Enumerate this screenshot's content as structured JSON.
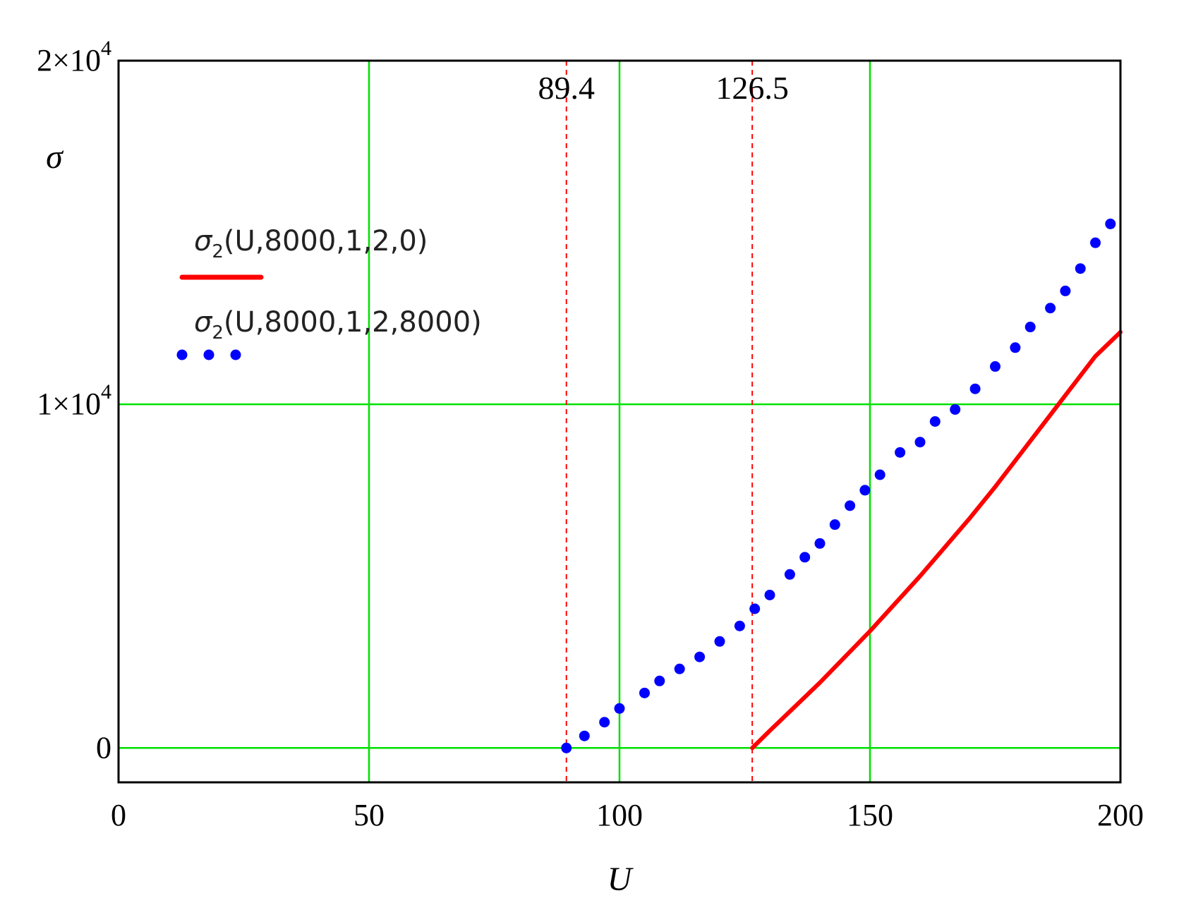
{
  "chart_data": {
    "type": "line",
    "xlabel": "U",
    "ylabel": "σ",
    "xlim": [
      0,
      200
    ],
    "ylim": [
      -1000,
      20000
    ],
    "x_ticks": [
      {
        "value": 0,
        "label": "0"
      },
      {
        "value": 50,
        "label": "50"
      },
      {
        "value": 100,
        "label": "100"
      },
      {
        "value": 150,
        "label": "150"
      },
      {
        "value": 200,
        "label": "200"
      }
    ],
    "y_ticks": [
      {
        "value": 0,
        "label": "0"
      },
      {
        "value": 10000,
        "label": "1×10",
        "exp": "4"
      },
      {
        "value": 20000,
        "label": "2×10",
        "exp": "4"
      }
    ],
    "grid": true,
    "markers": [
      {
        "x": 89.4,
        "label": "89.4"
      },
      {
        "x": 126.5,
        "label": "126.5"
      }
    ],
    "legend_position": "upper-left",
    "series": [
      {
        "name": "σ2(U,8000,1,2,0)",
        "legend_main": "σ",
        "legend_sub": "2",
        "legend_rest": "(U,8000,1,2,0)",
        "style": "solid",
        "color": "#ff0000",
        "x": [
          126.5,
          130,
          135,
          140,
          145,
          150,
          155,
          160,
          165,
          170,
          175,
          180,
          185,
          190,
          195,
          200
        ],
        "values": [
          0,
          500,
          1200,
          1900,
          2650,
          3400,
          4200,
          5000,
          5850,
          6700,
          7600,
          8550,
          9500,
          10450,
          11400,
          12100
        ]
      },
      {
        "name": "σ2(U,8000,1,2,8000)",
        "legend_main": "σ",
        "legend_sub": "2",
        "legend_rest": "(U,8000,1,2,8000)",
        "style": "dotted",
        "color": "#0000ff",
        "x": [
          89.4,
          93,
          97,
          100,
          105,
          108,
          112,
          116,
          120,
          124,
          127,
          130,
          134,
          137,
          140,
          143,
          146,
          149,
          152,
          156,
          160,
          163,
          167,
          171,
          175,
          179,
          182,
          186,
          189,
          192,
          195,
          198
        ],
        "values": [
          0,
          350,
          750,
          1150,
          1600,
          1950,
          2300,
          2650,
          3100,
          3550,
          4050,
          4450,
          5050,
          5550,
          5950,
          6500,
          7050,
          7500,
          7950,
          8600,
          8900,
          9500,
          9850,
          10450,
          11100,
          11650,
          12250,
          12800,
          13300,
          13950,
          14700,
          15250
        ]
      }
    ]
  },
  "colors": {
    "grid": "#00e000",
    "marker": "#ff0000",
    "axis": "#000000"
  }
}
